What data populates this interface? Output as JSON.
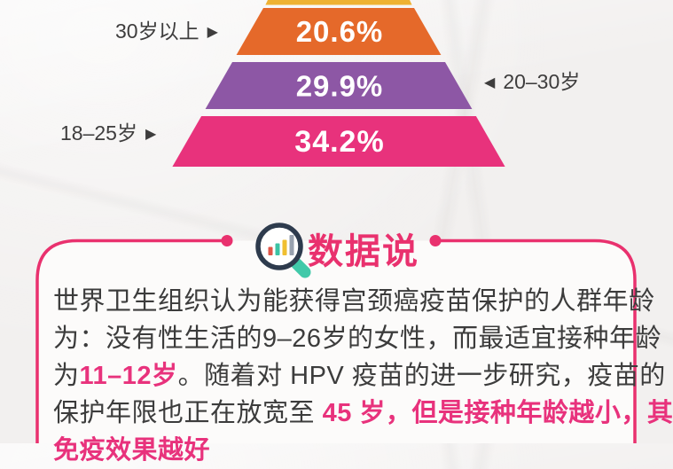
{
  "colors": {
    "page_bg": "#f2f0ef",
    "card_bg": "#fcfbfa",
    "accent_pink": "#e9316e",
    "body_text": "#3c3c3c",
    "highlight_text": "#e8327c",
    "percent_text": "#ffffff"
  },
  "chart_data": {
    "type": "bar",
    "variant": "pyramid-funnel",
    "title": "",
    "categories": [
      "30岁以上",
      "20–30岁",
      "18–25岁"
    ],
    "values": [
      20.6,
      29.9,
      34.2
    ],
    "value_labels": [
      "20.6%",
      "29.9%",
      "34.2%"
    ],
    "colors": [
      "#e5692a",
      "#8d57a5",
      "#e8327c"
    ],
    "partial_top_layer_color": "#eeb233",
    "label_sides": [
      "left",
      "right",
      "left"
    ],
    "grid": false,
    "legend_position": "none"
  },
  "icons": {
    "arrow_right": "▶",
    "arrow_left": "◀",
    "magnifier": "magnifier-with-bar-chart-icon"
  },
  "section": {
    "title": "数据说",
    "title_color": "#e9316e",
    "border_color": "#e9316e"
  },
  "paragraph": {
    "text_color": "#3c3c3c",
    "highlight_color": "#e8327c",
    "lines": [
      [
        {
          "t": "世界卫生组织认为能获得宫颈癌疫苗保护的人群年龄",
          "c": "dark"
        }
      ],
      [
        {
          "t": "为：没有性生活的9–26岁的女性，而最适宜接种年龄",
          "c": "dark"
        }
      ],
      [
        {
          "t": "为",
          "c": "dark"
        },
        {
          "t": "11–12岁",
          "c": "pink"
        },
        {
          "t": "。随着对 HPV 疫苗的进一步研究，疫苗的",
          "c": "dark"
        }
      ],
      [
        {
          "t": "保护年限也正在放宽至 ",
          "c": "dark"
        },
        {
          "t": "45 岁，但是接种年龄越小，其",
          "c": "pink"
        }
      ],
      [
        {
          "t": "免疫效果越好",
          "c": "pink"
        }
      ]
    ]
  }
}
